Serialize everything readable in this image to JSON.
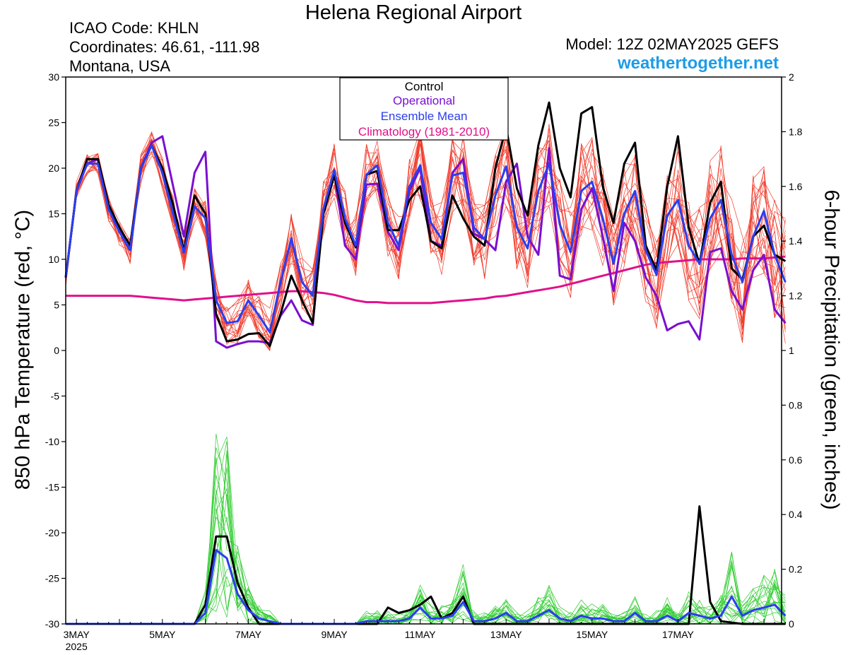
{
  "header": {
    "title": "Helena Regional Airport",
    "icao": "ICAO Code: KHLN",
    "coords": "Coordinates: 46.61, -111.98",
    "region": "Montana, USA",
    "model": "Model: 12Z 02MAY2025 GEFS",
    "site": "weathertogether.net"
  },
  "colors": {
    "control": "#000000",
    "operational": "#7a0fd0",
    "ensemble_mean": "#2a3ef0",
    "climatology": "#e0108a",
    "members_temp": "#f03c2c",
    "members_precip": "#2ecc2e"
  },
  "chart_data": {
    "type": "line",
    "xlabel": "",
    "ylabel": "850 hPa Temperature (red, °C)",
    "ylabel_right": "6-hour Precipitation (green, inches)",
    "ylim": [
      -30,
      30
    ],
    "ylim_right": [
      0,
      2
    ],
    "x_start": "2025-05-02 18Z",
    "x_step_hours": 6,
    "x_ticks": [
      {
        "label": "3MAY",
        "sub": "2025",
        "step": 1
      },
      {
        "label": "5MAY",
        "step": 9
      },
      {
        "label": "7MAY",
        "step": 17
      },
      {
        "label": "9MAY",
        "step": 25
      },
      {
        "label": "11MAY",
        "step": 33
      },
      {
        "label": "13MAY",
        "step": 41
      },
      {
        "label": "15MAY",
        "step": 49
      },
      {
        "label": "17MAY",
        "step": 57
      }
    ],
    "y_ticks": [
      30,
      25,
      20,
      15,
      10,
      5,
      0,
      -5,
      -10,
      -15,
      -20,
      -25,
      -30
    ],
    "y_ticks_right": [
      "2",
      "1.8",
      "1.6",
      "1.4",
      "1.2",
      "1",
      "0.8",
      "0.6",
      "0.4",
      "0.2",
      "0"
    ],
    "legend": {
      "placement": "top-center",
      "entries": [
        "Control",
        "Operational",
        "Ensemble Mean",
        "Climatology (1981-2010)"
      ]
    },
    "series": [
      {
        "name": "Control",
        "axis": "left",
        "values": [
          8,
          17.5,
          21,
          21,
          16,
          13.5,
          11.5,
          20,
          22.5,
          20,
          16,
          11,
          17,
          15,
          4,
          1,
          1.2,
          1.8,
          1.9,
          0.5,
          4,
          8.2,
          5.5,
          3,
          15,
          19.2,
          14,
          11.3,
          19.3,
          19.7,
          13.2,
          13.2,
          16.5,
          18,
          12,
          11.2,
          17,
          14.5,
          12.5,
          11.5,
          20,
          24.5,
          17.8,
          14.8,
          22.5,
          27.2,
          20,
          16.8,
          26,
          26.7,
          18,
          14,
          20.5,
          22.8,
          11.5,
          8.8,
          18,
          23.5,
          13.5,
          9.5,
          16.2,
          18.5,
          9,
          7.8,
          12.5,
          13.7,
          10.5,
          9.8
        ]
      },
      {
        "name": "Operational",
        "axis": "left",
        "values": [
          8,
          17.5,
          20.5,
          21,
          15.5,
          13,
          11,
          20,
          22.8,
          23.5,
          18,
          12.5,
          19.5,
          21.8,
          1,
          0.3,
          0.7,
          1,
          1,
          0.8,
          3.8,
          5.5,
          3.3,
          2.8,
          15.5,
          19.5,
          11.5,
          10,
          18.2,
          18.3,
          13,
          11,
          17.5,
          20,
          12,
          11.5,
          19.5,
          21,
          12.8,
          12.2,
          11,
          18.5,
          20.5,
          12.5,
          10.5,
          22.2,
          8.2,
          7.8,
          15.5,
          17.8,
          12.5,
          6.5,
          14,
          12,
          8,
          6,
          2.2,
          2.9,
          3.2,
          1.2,
          10.8,
          11.2,
          6.5,
          4.5,
          8.8,
          10.5,
          4.5,
          3
        ]
      },
      {
        "name": "Ensemble Mean",
        "axis": "left",
        "values": [
          8,
          17.5,
          20.5,
          20.5,
          15.5,
          13,
          11,
          20,
          22.5,
          19.5,
          15,
          10.7,
          15.8,
          14.5,
          5.5,
          3,
          3.2,
          5.5,
          3.8,
          2,
          7.5,
          12.3,
          7.5,
          6,
          15.5,
          19.8,
          14.5,
          11.5,
          19.3,
          20.3,
          14,
          11.5,
          18,
          20.3,
          14,
          12.2,
          19.2,
          19.5,
          13.5,
          12.2,
          17,
          20.2,
          13.5,
          11.2,
          17.5,
          20.5,
          13.8,
          10.8,
          17.5,
          18.5,
          14.5,
          9.5,
          15,
          17.5,
          11,
          8.3,
          14.8,
          16.5,
          11.5,
          9.5,
          14.5,
          16.5,
          10.5,
          7.5,
          12.5,
          15.3,
          10.5,
          7.5
        ]
      },
      {
        "name": "Climatology (1981-2010)",
        "axis": "left",
        "values": [
          6,
          6,
          6,
          6,
          6,
          6,
          6,
          5.9,
          5.8,
          5.7,
          5.6,
          5.5,
          5.6,
          5.7,
          5.8,
          5.9,
          6,
          6.1,
          6.2,
          6.3,
          6.4,
          6.5,
          6.5,
          6.4,
          6.3,
          6.1,
          5.8,
          5.5,
          5.3,
          5.3,
          5.2,
          5.2,
          5.2,
          5.2,
          5.2,
          5.3,
          5.4,
          5.5,
          5.6,
          5.7,
          5.9,
          6,
          6.2,
          6.4,
          6.6,
          6.8,
          7,
          7.3,
          7.6,
          7.9,
          8.2,
          8.5,
          8.8,
          9.1,
          9.4,
          9.6,
          9.7,
          9.8,
          9.9,
          10,
          10,
          10,
          10,
          10.1,
          10.1,
          10.1,
          10.2,
          10.3
        ]
      },
      {
        "name": "Control",
        "axis": "right",
        "values": [
          0,
          0,
          0,
          0,
          0,
          0,
          0,
          0,
          0,
          0,
          0,
          0,
          0,
          0.07,
          0.32,
          0.32,
          0.15,
          0.06,
          0,
          0,
          0,
          0,
          0,
          0,
          0,
          0,
          0,
          0,
          0,
          0,
          0.06,
          0.04,
          0.05,
          0.07,
          0.1,
          0.02,
          0.04,
          0.1,
          0,
          0,
          0,
          0,
          0,
          0,
          0,
          0,
          0,
          0,
          0,
          0,
          0,
          0,
          0,
          0,
          0,
          0,
          0,
          0,
          0,
          0.43,
          0.08,
          0.01,
          0.005,
          0,
          0,
          0,
          0,
          0
        ]
      },
      {
        "name": "Ensemble Mean",
        "axis": "right",
        "values": [
          0,
          0,
          0,
          0,
          0,
          0,
          0,
          0,
          0,
          0,
          0,
          0,
          0,
          0.04,
          0.27,
          0.24,
          0.11,
          0.05,
          0.02,
          0.01,
          0,
          0,
          0,
          0,
          0,
          0,
          0,
          0,
          0.01,
          0.01,
          0.01,
          0.01,
          0.02,
          0.06,
          0.02,
          0.02,
          0.03,
          0.08,
          0.01,
          0.01,
          0.02,
          0.04,
          0.01,
          0.01,
          0.03,
          0.05,
          0.02,
          0.01,
          0.03,
          0.02,
          0.02,
          0.01,
          0.01,
          0.04,
          0.01,
          0.01,
          0.03,
          0.01,
          0.04,
          0.03,
          0.02,
          0.03,
          0.1,
          0.03,
          0.05,
          0.06,
          0.07,
          0.03
        ]
      }
    ],
    "members_note": ""
  }
}
